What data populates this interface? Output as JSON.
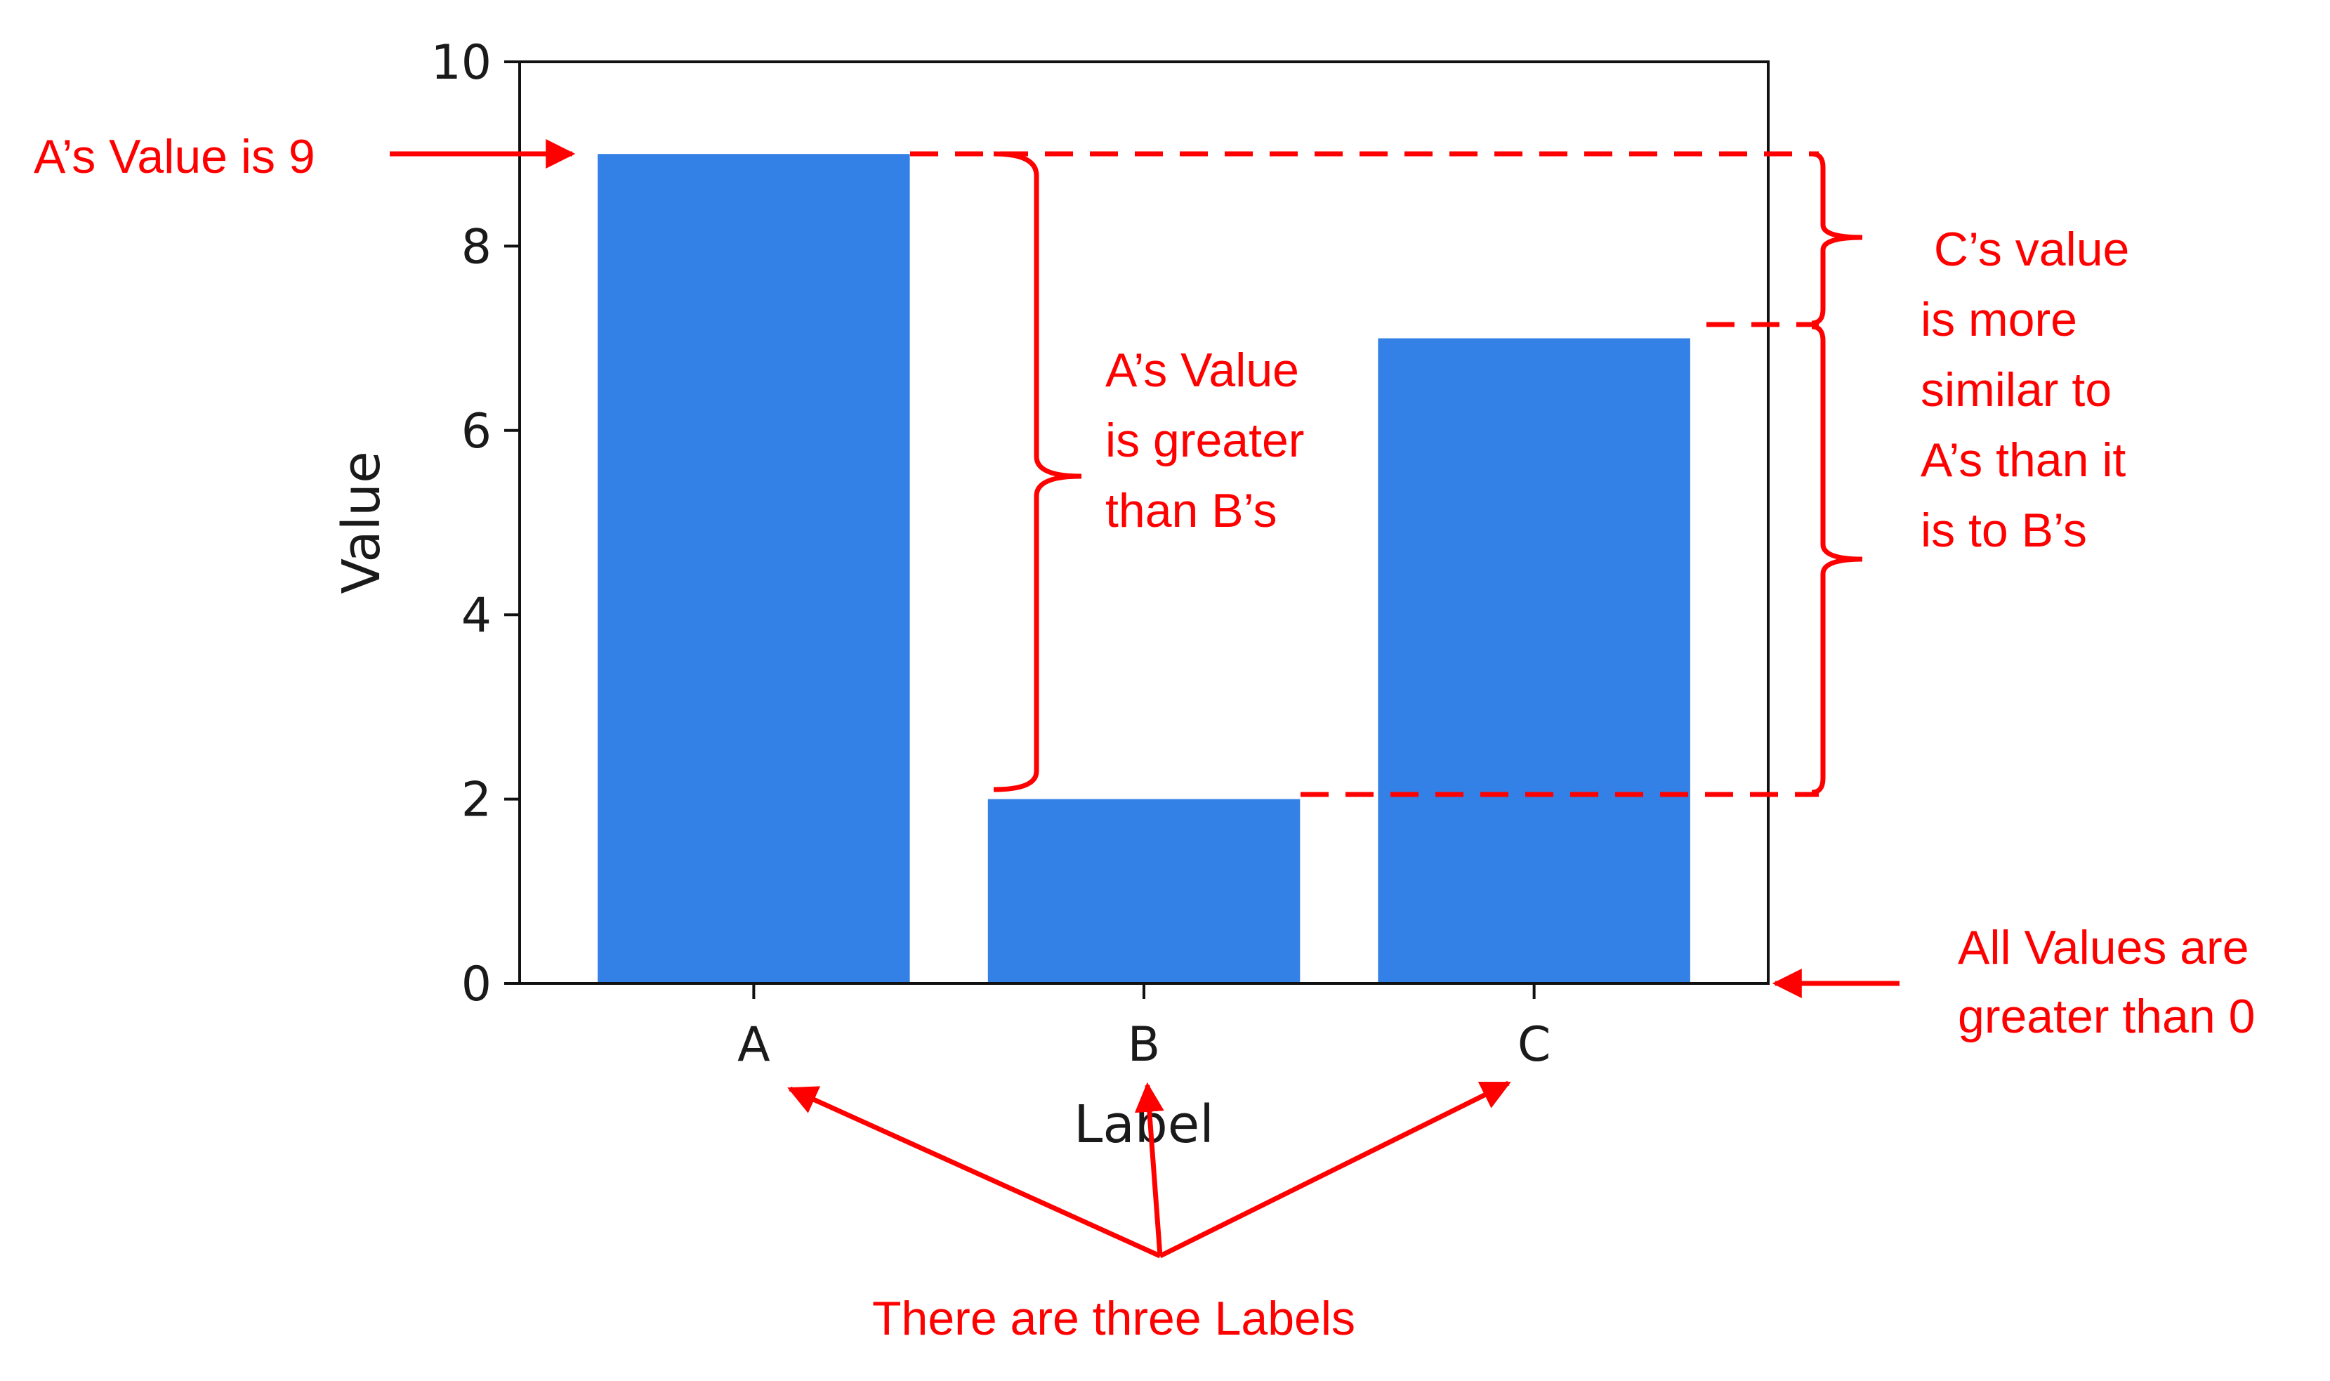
{
  "chart_data": {
    "type": "bar",
    "categories": [
      "A",
      "B",
      "C"
    ],
    "values": [
      9,
      2,
      7
    ],
    "xlabel": "Label",
    "ylabel": "Value",
    "ylim": [
      0,
      10
    ],
    "yticks": [
      "0",
      "2",
      "4",
      "6",
      "8",
      "10"
    ],
    "grid": false,
    "bar_color": "#3380e6"
  },
  "annotations": {
    "color": "#ff0000",
    "a_value": "A’s Value is 9",
    "a_greater": [
      "A’s Value",
      "is greater",
      "than B’s"
    ],
    "c_similar": [
      " C’s value",
      "is more",
      "similar to",
      "A’s than it",
      "is to B’s"
    ],
    "all_positive": [
      "All Values are",
      "greater than 0"
    ],
    "three_labels": "There are three Labels"
  }
}
